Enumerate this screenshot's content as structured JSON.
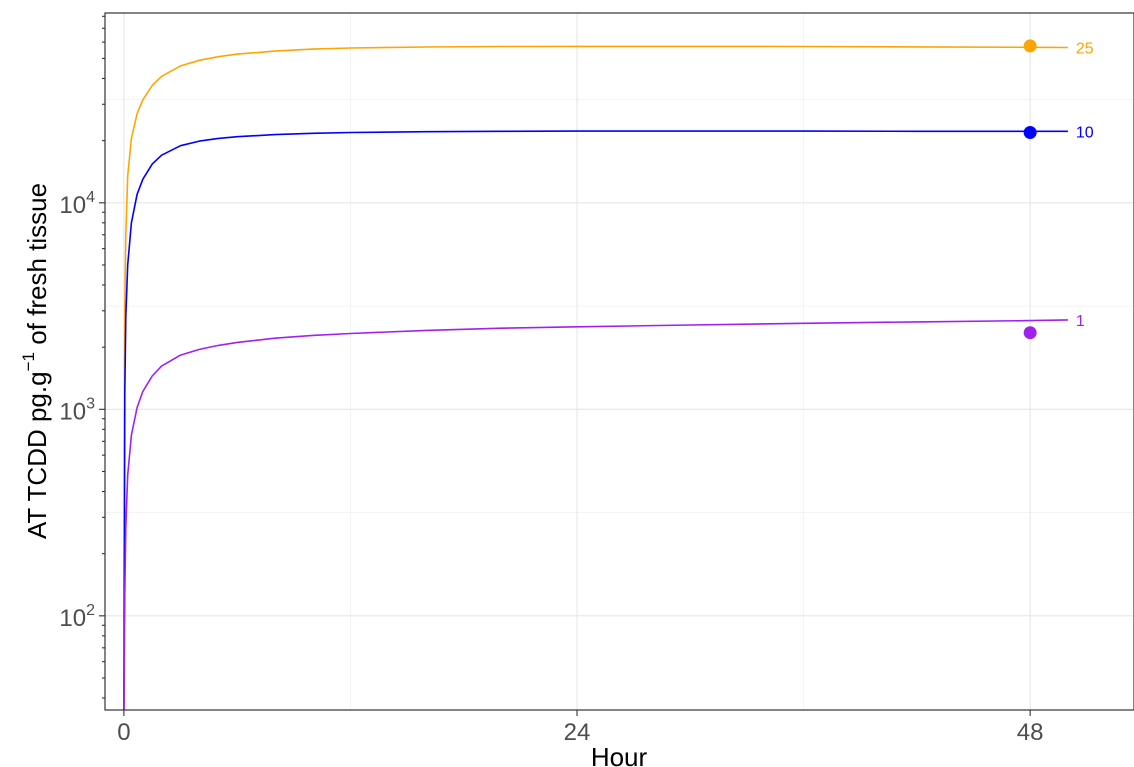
{
  "chart_data": {
    "type": "line",
    "title": "",
    "xlabel": "Hour",
    "ylabel_parts": [
      "AT TCDD pg.g",
      "−1",
      " of fresh tissue"
    ],
    "x_scale": "linear",
    "y_scale": "log",
    "xlim": [
      -1,
      53.5
    ],
    "ylim": [
      35,
      83000
    ],
    "x_ticks": [
      {
        "value": 0,
        "label": "0"
      },
      {
        "value": 24,
        "label": "24"
      },
      {
        "value": 48,
        "label": "48"
      }
    ],
    "y_ticks": [
      {
        "value": 100,
        "base": "10",
        "exp": "2"
      },
      {
        "value": 1000,
        "base": "10",
        "exp": "3"
      },
      {
        "value": 10000,
        "base": "10",
        "exp": "4"
      }
    ],
    "grid": true,
    "series": [
      {
        "name": "25",
        "color": "#FFA500",
        "x": [
          0,
          0.05,
          0.1,
          0.2,
          0.4,
          0.7,
          1,
          1.5,
          2,
          3,
          4,
          5,
          6,
          8,
          10,
          12,
          16,
          20,
          24,
          30,
          36,
          42,
          48,
          50
        ],
        "y": [
          35,
          3000,
          7000,
          13500,
          20500,
          27000,
          31500,
          37000,
          41000,
          46000,
          49000,
          51000,
          52500,
          54300,
          55500,
          56200,
          56800,
          57100,
          57200,
          57200,
          57100,
          56900,
          56600,
          56500
        ],
        "observed": {
          "x": 48,
          "y": 57500
        }
      },
      {
        "name": "10",
        "color": "#0000FF",
        "x": [
          0,
          0.05,
          0.1,
          0.2,
          0.4,
          0.7,
          1,
          1.5,
          2,
          3,
          4,
          5,
          6,
          8,
          10,
          12,
          16,
          20,
          24,
          30,
          36,
          42,
          48,
          50
        ],
        "y": [
          35,
          1200,
          2800,
          5000,
          8000,
          11000,
          13000,
          15400,
          17000,
          18900,
          19900,
          20500,
          20900,
          21400,
          21700,
          21900,
          22100,
          22200,
          22250,
          22250,
          22250,
          22200,
          22200,
          22200
        ],
        "observed": {
          "x": 48,
          "y": 21900
        }
      },
      {
        "name": "1",
        "color": "#A020F0",
        "x": [
          0,
          0.05,
          0.1,
          0.2,
          0.4,
          0.7,
          1,
          1.5,
          2,
          3,
          4,
          5,
          6,
          8,
          10,
          12,
          16,
          20,
          24,
          30,
          36,
          42,
          48,
          50
        ],
        "y": [
          35,
          130,
          270,
          480,
          750,
          1020,
          1220,
          1450,
          1620,
          1830,
          1950,
          2040,
          2110,
          2210,
          2280,
          2330,
          2410,
          2470,
          2510,
          2560,
          2610,
          2650,
          2690,
          2710
        ],
        "observed": {
          "x": 48,
          "y": 2350
        }
      }
    ]
  }
}
